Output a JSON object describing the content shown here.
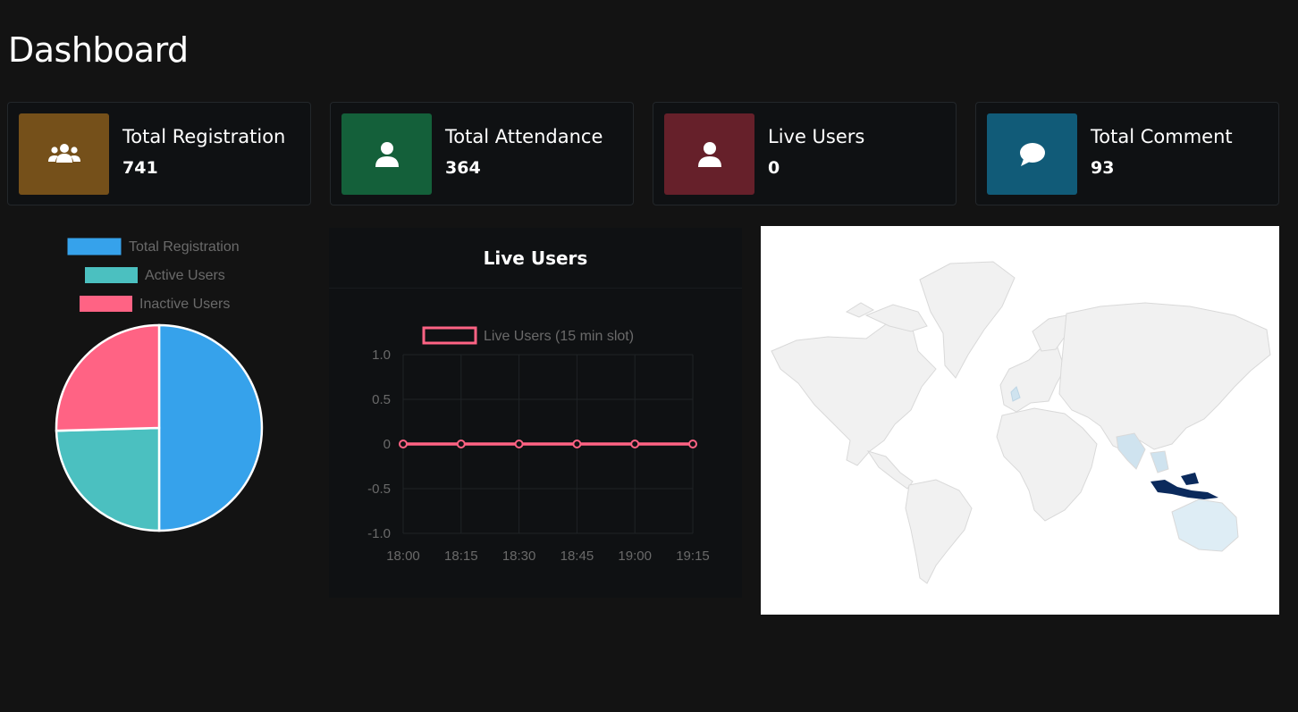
{
  "page": {
    "title": "Dashboard"
  },
  "stats": [
    {
      "label": "Total Registration",
      "value": "741",
      "color": "#75501a",
      "icon": "users-icon"
    },
    {
      "label": "Total Attendance",
      "value": "364",
      "color": "#14603a",
      "icon": "user-icon"
    },
    {
      "label": "Live Users",
      "value": "0",
      "color": "#66202a",
      "icon": "user-icon"
    },
    {
      "label": "Total Comment",
      "value": "93",
      "color": "#115b78",
      "icon": "comment-icon"
    }
  ],
  "pie_chart": {
    "legend": [
      {
        "label": "Total Registration",
        "color": "#36a2eb"
      },
      {
        "label": "Active Users",
        "color": "#4bc0c0"
      },
      {
        "label": "Inactive Users",
        "color": "#ff6384"
      }
    ]
  },
  "live_panel": {
    "title": "Live Users",
    "legend_label": "Live Users (15 min slot)",
    "line_color": "#ff6384"
  },
  "chart_data": [
    {
      "type": "pie",
      "categories": [
        "Total Registration",
        "Active Users",
        "Inactive Users"
      ],
      "values": [
        741,
        364,
        377
      ],
      "colors": [
        "#36a2eb",
        "#4bc0c0",
        "#ff6384"
      ],
      "legend_position": "top"
    },
    {
      "type": "line",
      "x": [
        "18:00",
        "18:15",
        "18:30",
        "18:45",
        "19:00",
        "19:15"
      ],
      "series": [
        {
          "name": "Live Users (15 min slot)",
          "values": [
            0,
            0,
            0,
            0,
            0,
            0
          ]
        }
      ],
      "yticks": [
        "1.0",
        "0.5",
        "0",
        "-0.5",
        "-1.0"
      ],
      "ylim": [
        -1,
        1
      ],
      "grid": true,
      "legend_position": "top"
    }
  ],
  "map": {
    "highlight_color": "#0b2a5c",
    "light_color": "#cfe3ef"
  }
}
